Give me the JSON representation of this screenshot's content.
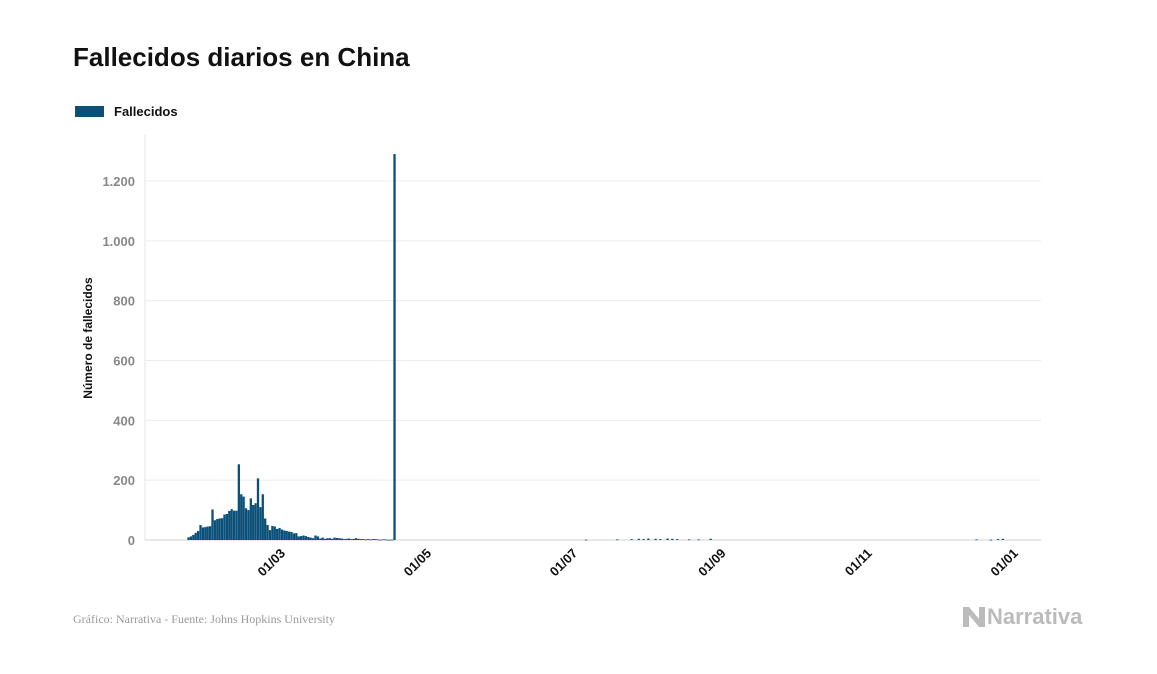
{
  "title": "Fallecidos diarios en China",
  "footer": "Gráfico: Narrativa - Fuente: Johns Hopkins University",
  "logo_text": "Narrativa",
  "chart_data": {
    "type": "bar",
    "title": "Fallecidos diarios en China",
    "ylabel": "Número de fallecidos",
    "xlabel": "",
    "legend": {
      "position": "top-left",
      "entries": [
        "Fallecidos"
      ]
    },
    "series": [
      {
        "name": "Fallecidos",
        "color": "#0b5078"
      }
    ],
    "ylim": [
      0,
      1300
    ],
    "yticks": [
      0,
      200,
      400,
      600,
      800,
      1000,
      1200
    ],
    "ytick_labels": [
      "0",
      "200",
      "400",
      "600",
      "800",
      "1.000",
      "1.200"
    ],
    "xticks": [
      "2020-03-01",
      "2020-05-01",
      "2020-07-01",
      "2020-09-01",
      "2020-11-01",
      "2021-01-01"
    ],
    "xtick_labels": [
      "01/03",
      "01/05",
      "01/07",
      "01/09",
      "01/11",
      "01/01"
    ],
    "grid": "horizontal",
    "x": [
      "2020-01-22",
      "2020-01-23",
      "2020-01-24",
      "2020-01-25",
      "2020-01-26",
      "2020-01-27",
      "2020-01-28",
      "2020-01-29",
      "2020-01-30",
      "2020-01-31",
      "2020-02-01",
      "2020-02-02",
      "2020-02-03",
      "2020-02-04",
      "2020-02-05",
      "2020-02-06",
      "2020-02-07",
      "2020-02-08",
      "2020-02-09",
      "2020-02-10",
      "2020-02-11",
      "2020-02-12",
      "2020-02-13",
      "2020-02-14",
      "2020-02-15",
      "2020-02-16",
      "2020-02-17",
      "2020-02-18",
      "2020-02-19",
      "2020-02-20",
      "2020-02-21",
      "2020-02-22",
      "2020-02-23",
      "2020-02-24",
      "2020-02-25",
      "2020-02-26",
      "2020-02-27",
      "2020-02-28",
      "2020-02-29",
      "2020-03-01",
      "2020-03-02",
      "2020-03-03",
      "2020-03-04",
      "2020-03-05",
      "2020-03-06",
      "2020-03-07",
      "2020-03-08",
      "2020-03-09",
      "2020-03-10",
      "2020-03-11",
      "2020-03-12",
      "2020-03-13",
      "2020-03-14",
      "2020-03-15",
      "2020-03-16",
      "2020-03-17",
      "2020-03-18",
      "2020-03-19",
      "2020-03-20",
      "2020-03-21",
      "2020-03-22",
      "2020-03-23",
      "2020-03-24",
      "2020-03-25",
      "2020-03-26",
      "2020-03-27",
      "2020-03-28",
      "2020-03-29",
      "2020-03-30",
      "2020-03-31",
      "2020-04-01",
      "2020-04-02",
      "2020-04-03",
      "2020-04-04",
      "2020-04-05",
      "2020-04-06",
      "2020-04-07",
      "2020-04-08",
      "2020-04-09",
      "2020-04-10",
      "2020-04-11",
      "2020-04-12",
      "2020-04-13",
      "2020-04-14",
      "2020-04-15",
      "2020-04-16",
      "2020-04-17",
      "2020-07-06",
      "2020-07-19",
      "2020-07-25",
      "2020-07-28",
      "2020-07-30",
      "2020-08-01",
      "2020-08-04",
      "2020-08-06",
      "2020-08-09",
      "2020-08-11",
      "2020-08-13",
      "2020-08-18",
      "2020-08-22",
      "2020-08-27",
      "2020-12-16",
      "2020-12-22",
      "2020-12-25",
      "2020-12-27"
    ],
    "values": [
      9,
      12,
      17,
      24,
      30,
      50,
      42,
      43,
      45,
      46,
      102,
      66,
      70,
      72,
      73,
      85,
      87,
      97,
      103,
      98,
      98,
      253,
      153,
      145,
      106,
      100,
      139,
      117,
      123,
      206,
      110,
      153,
      72,
      50,
      33,
      47,
      45,
      37,
      40,
      35,
      32,
      30,
      28,
      27,
      22,
      23,
      12,
      13,
      15,
      13,
      10,
      8,
      6,
      15,
      12,
      5,
      8,
      4,
      6,
      6,
      4,
      8,
      7,
      6,
      5,
      3,
      4,
      5,
      3,
      4,
      6,
      4,
      3,
      3,
      2,
      3,
      2,
      3,
      3,
      2,
      1,
      2,
      2,
      1,
      1,
      1,
      1290,
      1,
      2,
      3,
      4,
      3,
      5,
      4,
      3,
      5,
      4,
      3,
      2,
      2,
      4,
      2,
      1,
      3,
      4
    ]
  }
}
